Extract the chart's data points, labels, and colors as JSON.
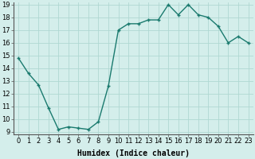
{
  "x": [
    0,
    1,
    2,
    3,
    4,
    5,
    6,
    7,
    8,
    9,
    10,
    11,
    12,
    13,
    14,
    15,
    16,
    17,
    18,
    19,
    20,
    21,
    22,
    23
  ],
  "y": [
    14.8,
    13.6,
    12.7,
    10.9,
    9.2,
    9.4,
    9.3,
    9.2,
    9.8,
    12.6,
    17.0,
    17.5,
    17.5,
    17.8,
    17.8,
    19.0,
    18.2,
    19.0,
    18.2,
    18.0,
    17.3,
    16.0,
    16.5,
    16.0
  ],
  "line_color": "#1a7a6e",
  "marker_color": "#1a7a6e",
  "bg_color": "#d4eeeb",
  "grid_color": "#b0d8d2",
  "xlabel": "Humidex (Indice chaleur)",
  "ylim_min": 9,
  "ylim_max": 19,
  "xlim_min": 0,
  "xlim_max": 23,
  "yticks": [
    9,
    10,
    11,
    12,
    13,
    14,
    15,
    16,
    17,
    18,
    19
  ],
  "xticks": [
    0,
    1,
    2,
    3,
    4,
    5,
    6,
    7,
    8,
    9,
    10,
    11,
    12,
    13,
    14,
    15,
    16,
    17,
    18,
    19,
    20,
    21,
    22,
    23
  ],
  "xlabel_fontsize": 7,
  "tick_fontsize": 6,
  "linewidth": 1.0,
  "markersize": 3,
  "markeredgewidth": 1.0
}
